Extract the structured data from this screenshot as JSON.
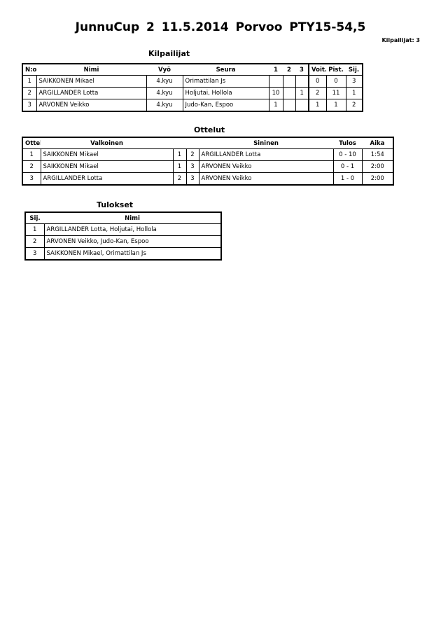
{
  "title": "JunnuCup 2  11.5.2014  Porvoo   PTY15-54,5",
  "competitor_count": "Kilpailijat: 3",
  "competitors": {
    "heading": "Kilpailijat",
    "headers": [
      "N:o",
      "Nimi",
      "Vyö",
      "Seura",
      "1",
      "2",
      "3",
      "Voit.",
      "Pist.",
      "Sij."
    ],
    "rows": [
      [
        "1",
        "SAIKKONEN Mikael",
        "4.kyu",
        "Orimattilan Js",
        "",
        "",
        "",
        "0",
        "0",
        "3"
      ],
      [
        "2",
        "ARGILLANDER Lotta",
        "4.kyu",
        "Holjutai, Hollola",
        "10",
        "",
        "1",
        "2",
        "11",
        "1"
      ],
      [
        "3",
        "ARVONEN Veikko",
        "4.kyu",
        "Judo-Kan, Espoo",
        "1",
        "",
        "",
        "1",
        "1",
        "2"
      ]
    ]
  },
  "matches": {
    "heading": "Ottelut",
    "headers": [
      "Ottelu",
      "Valkoinen",
      "Sininen",
      "Tulos",
      "Aika"
    ],
    "rows": [
      [
        "1",
        "SAIKKONEN Mikael",
        "1",
        "2",
        "ARGILLANDER Lotta",
        "0 - 10",
        "1:54"
      ],
      [
        "2",
        "SAIKKONEN Mikael",
        "1",
        "3",
        "ARVONEN Veikko",
        "0 - 1",
        "2:00"
      ],
      [
        "3",
        "ARGILLANDER Lotta",
        "2",
        "3",
        "ARVONEN Veikko",
        "1 - 0",
        "2:00"
      ]
    ]
  },
  "results": {
    "heading": "Tulokset",
    "headers": [
      "Sij.",
      "Nimi"
    ],
    "rows": [
      [
        "1",
        "ARGILLANDER Lotta, Holjutai, Hollola"
      ],
      [
        "2",
        "ARVONEN Veikko, Judo-Kan, Espoo"
      ],
      [
        "3",
        "SAIKKONEN Mikael, Orimattilan Js"
      ]
    ]
  }
}
